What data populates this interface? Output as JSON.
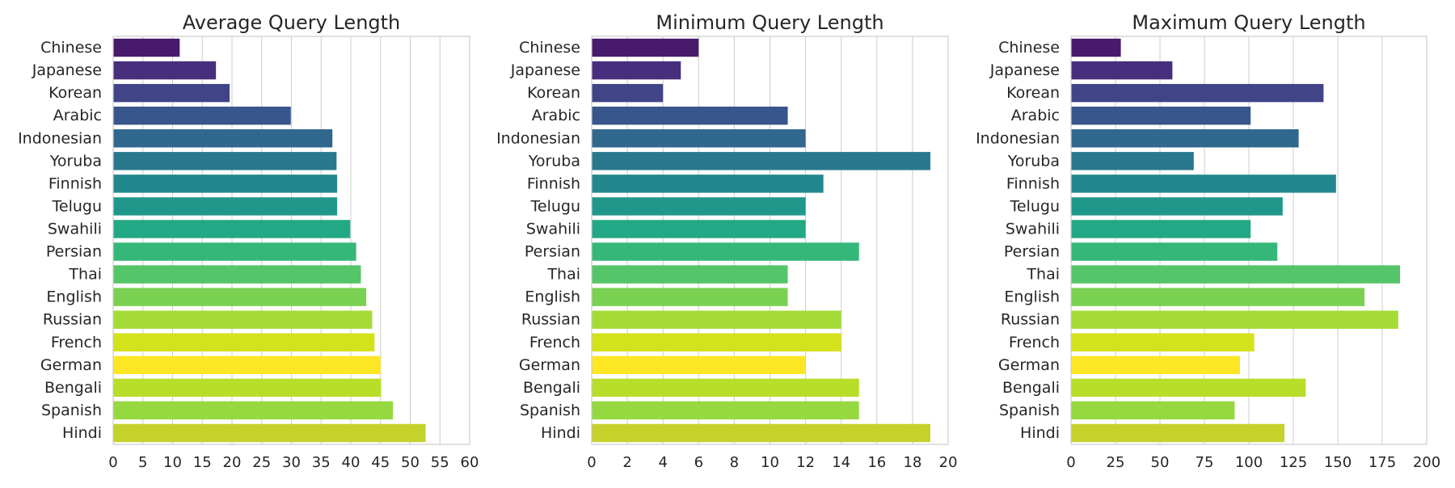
{
  "categories": [
    "Chinese",
    "Japanese",
    "Korean",
    "Arabic",
    "Indonesian",
    "Yoruba",
    "Finnish",
    "Telugu",
    "Swahili",
    "Persian",
    "Thai",
    "English",
    "Russian",
    "French",
    "German",
    "Bengali",
    "Spanish",
    "Hindi"
  ],
  "bar_colors": [
    "#481a6c",
    "#472f7d",
    "#414487",
    "#39568c",
    "#31688e",
    "#2a788e",
    "#23888e",
    "#1f988b",
    "#22a884",
    "#35b779",
    "#54c568",
    "#7ad151",
    "#a5db36",
    "#d2e21b",
    "#fde725",
    "#b8de29",
    "#95d840",
    "#c4d22b"
  ],
  "chart_data": [
    {
      "type": "bar",
      "orientation": "horizontal",
      "title": "Average Query Length",
      "xlim": [
        0,
        60
      ],
      "ticks": [
        0,
        5,
        10,
        15,
        20,
        25,
        30,
        35,
        40,
        45,
        50,
        55,
        60
      ],
      "grid": true,
      "categories": [
        "Chinese",
        "Japanese",
        "Korean",
        "Arabic",
        "Indonesian",
        "Yoruba",
        "Finnish",
        "Telugu",
        "Swahili",
        "Persian",
        "Thai",
        "English",
        "Russian",
        "French",
        "German",
        "Bengali",
        "Spanish",
        "Hindi"
      ],
      "values": [
        11.2,
        17.3,
        19.6,
        29.9,
        36.9,
        37.6,
        37.7,
        37.7,
        39.9,
        40.9,
        41.7,
        42.6,
        43.6,
        44.0,
        45.0,
        45.1,
        47.1,
        52.6
      ]
    },
    {
      "type": "bar",
      "orientation": "horizontal",
      "title": "Minimum Query Length",
      "xlim": [
        0,
        20
      ],
      "ticks": [
        0,
        2,
        4,
        6,
        8,
        10,
        12,
        14,
        16,
        18,
        20
      ],
      "grid": true,
      "categories": [
        "Chinese",
        "Japanese",
        "Korean",
        "Arabic",
        "Indonesian",
        "Yoruba",
        "Finnish",
        "Telugu",
        "Swahili",
        "Persian",
        "Thai",
        "English",
        "Russian",
        "French",
        "German",
        "Bengali",
        "Spanish",
        "Hindi"
      ],
      "values": [
        6,
        5,
        4,
        11,
        12,
        19,
        13,
        12,
        12,
        15,
        11,
        11,
        14,
        14,
        12,
        15,
        15,
        19
      ]
    },
    {
      "type": "bar",
      "orientation": "horizontal",
      "title": "Maximum Query Length",
      "xlim": [
        0,
        200
      ],
      "ticks": [
        0,
        25,
        50,
        75,
        100,
        125,
        150,
        175,
        200
      ],
      "grid": true,
      "categories": [
        "Chinese",
        "Japanese",
        "Korean",
        "Arabic",
        "Indonesian",
        "Yoruba",
        "Finnish",
        "Telugu",
        "Swahili",
        "Persian",
        "Thai",
        "English",
        "Russian",
        "French",
        "German",
        "Bengali",
        "Spanish",
        "Hindi"
      ],
      "values": [
        28,
        57,
        142,
        101,
        128,
        69,
        149,
        119,
        101,
        116,
        185,
        165,
        184,
        103,
        95,
        132,
        92,
        120
      ]
    }
  ]
}
